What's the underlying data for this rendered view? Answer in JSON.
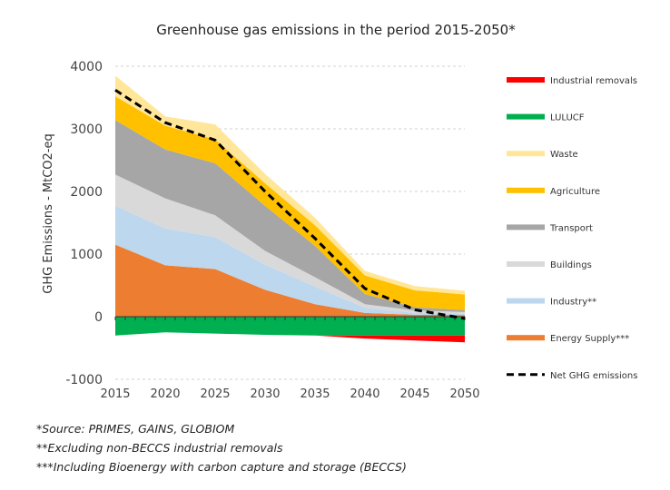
{
  "chart_data": {
    "type": "area",
    "title": "Greenhouse gas emissions in the period 2015-2050*",
    "ylabel": "GHG Emissions - MtCO2-eq",
    "xlabel": "",
    "x": [
      2015,
      2020,
      2025,
      2030,
      2035,
      2040,
      2045,
      2050
    ],
    "xticks": [
      "2015",
      "2020",
      "2025",
      "2030",
      "2035",
      "2040",
      "2045",
      "2050"
    ],
    "ylim": [
      -1000,
      4000
    ],
    "yticks": [
      "-1000",
      "0",
      "1000",
      "2000",
      "3000",
      "4000"
    ],
    "grid": "horizontal dashed",
    "legend_position": "right",
    "positive_series": [
      {
        "name": "Energy Supply***",
        "color": "#ED7D31",
        "values": [
          1150,
          820,
          760,
          430,
          200,
          60,
          30,
          25
        ]
      },
      {
        "name": "Industry**",
        "color": "#BDD7EE",
        "values": [
          620,
          590,
          510,
          400,
          280,
          80,
          30,
          20
        ]
      },
      {
        "name": "Buildings",
        "color": "#D9D9D9",
        "values": [
          500,
          480,
          350,
          220,
          150,
          60,
          40,
          30
        ]
      },
      {
        "name": "Transport",
        "color": "#A6A6A6",
        "values": [
          870,
          780,
          830,
          720,
          500,
          160,
          50,
          30
        ]
      },
      {
        "name": "Agriculture",
        "color": "#FFC000",
        "values": [
          380,
          380,
          380,
          360,
          330,
          300,
          270,
          250
        ]
      },
      {
        "name": "Waste",
        "color": "#FFE699",
        "values": [
          330,
          150,
          240,
          150,
          120,
          70,
          70,
          60
        ]
      }
    ],
    "negative_series": [
      {
        "name": "LULUCF",
        "color": "#00B050",
        "values": [
          -300,
          -250,
          -270,
          -290,
          -300,
          -300,
          -300,
          -300
        ]
      },
      {
        "name": "Industrial removals",
        "color": "#FF0000",
        "values": [
          0,
          0,
          0,
          0,
          0,
          -50,
          -80,
          -110
        ]
      }
    ],
    "line_series": {
      "name": "Net GHG emissions",
      "color": "#000000",
      "values": [
        3620,
        3100,
        2820,
        2000,
        1250,
        450,
        110,
        -30
      ]
    },
    "legend": [
      {
        "name": "Industrial removals",
        "color": "#FF0000",
        "kind": "bar"
      },
      {
        "name": "LULUCF",
        "color": "#00B050",
        "kind": "bar"
      },
      {
        "name": "Waste",
        "color": "#FFE699",
        "kind": "bar"
      },
      {
        "name": "Agriculture",
        "color": "#FFC000",
        "kind": "bar"
      },
      {
        "name": "Transport",
        "color": "#A6A6A6",
        "kind": "bar"
      },
      {
        "name": "Buildings",
        "color": "#D9D9D9",
        "kind": "bar"
      },
      {
        "name": "Industry**",
        "color": "#BDD7EE",
        "kind": "bar"
      },
      {
        "name": "Energy Supply***",
        "color": "#ED7D31",
        "kind": "bar"
      },
      {
        "name": "Net GHG emissions",
        "color": "#000000",
        "kind": "dashed-line"
      }
    ]
  },
  "footnotes": {
    "source": "*Source: PRIMES, GAINS, GLOBIOM",
    "note2": "**Excluding non-BECCS industrial removals",
    "note3": "***Including Bioenergy with carbon capture and storage (BECCS)"
  }
}
